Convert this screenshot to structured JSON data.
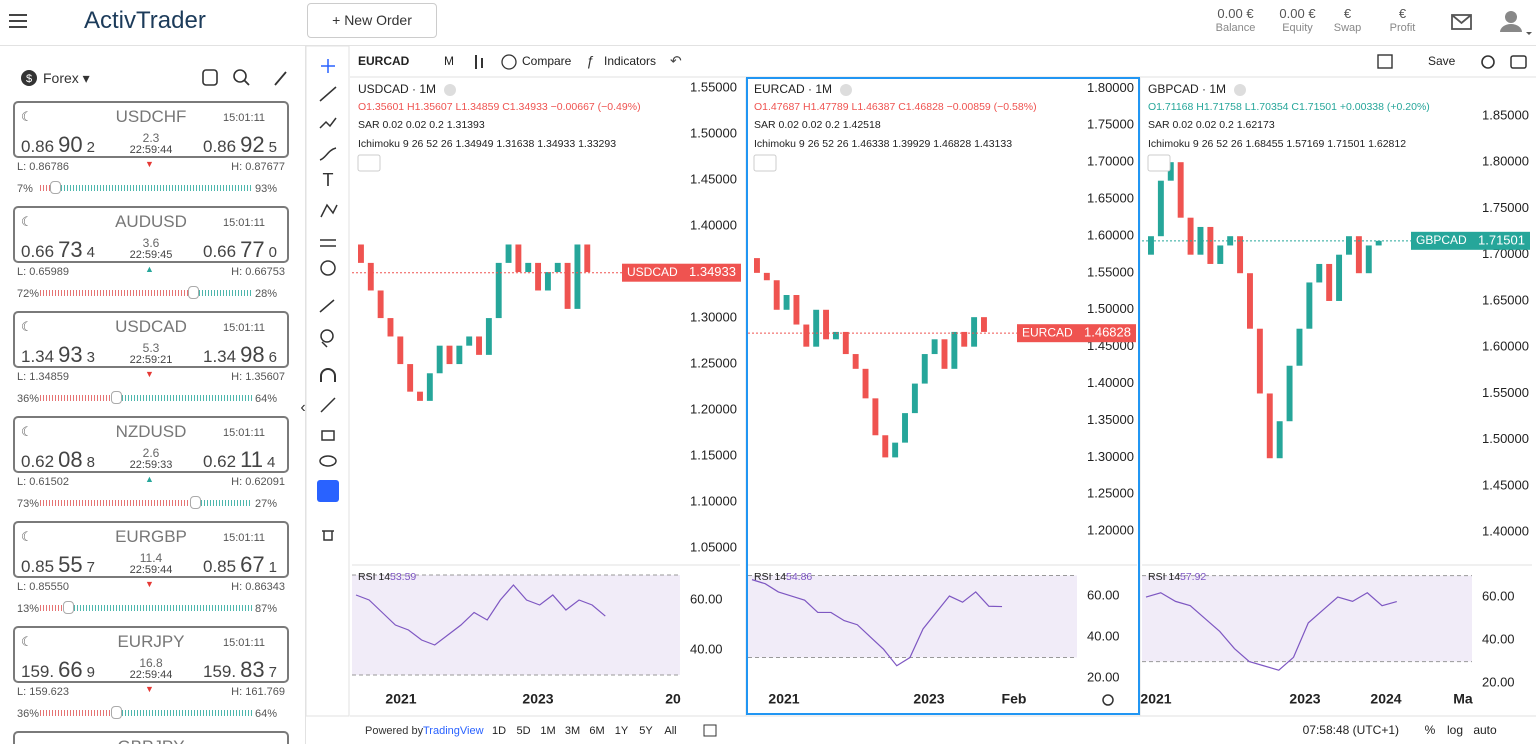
{
  "header": {
    "logo": "ActivTrader",
    "new_order": "New Order",
    "stats": [
      {
        "value": "0.00 €",
        "label": "Balance"
      },
      {
        "value": "0.00 €",
        "label": "Equity"
      },
      {
        "value": "€",
        "label": "Swap"
      },
      {
        "value": "€",
        "label": "Profit"
      }
    ]
  },
  "sidebar": {
    "market": "Forex",
    "quotes": [
      {
        "symbol": "USDCHF",
        "time": "15:01:11",
        "bid": [
          "0.86",
          "90",
          "2"
        ],
        "spread": "2.3",
        "server_time": "22:59:44",
        "ask": [
          "0.86",
          "92",
          "5"
        ],
        "low": "L: 0.86786",
        "high": "H: 0.87677",
        "sell_pct": "7%",
        "buy_pct": "93%",
        "direction": "down"
      },
      {
        "symbol": "AUDUSD",
        "time": "15:01:11",
        "bid": [
          "0.66",
          "73",
          "4"
        ],
        "spread": "3.6",
        "server_time": "22:59:45",
        "ask": [
          "0.66",
          "77",
          "0"
        ],
        "low": "L: 0.65989",
        "high": "H: 0.66753",
        "sell_pct": "72%",
        "buy_pct": "28%",
        "direction": "up"
      },
      {
        "symbol": "USDCAD",
        "time": "15:01:11",
        "bid": [
          "1.34",
          "93",
          "3"
        ],
        "spread": "5.3",
        "server_time": "22:59:21",
        "ask": [
          "1.34",
          "98",
          "6"
        ],
        "low": "L: 1.34859",
        "high": "H: 1.35607",
        "sell_pct": "36%",
        "buy_pct": "64%",
        "direction": "down"
      },
      {
        "symbol": "NZDUSD",
        "time": "15:01:11",
        "bid": [
          "0.62",
          "08",
          "8"
        ],
        "spread": "2.6",
        "server_time": "22:59:33",
        "ask": [
          "0.62",
          "11",
          "4"
        ],
        "low": "L: 0.61502",
        "high": "H: 0.62091",
        "sell_pct": "73%",
        "buy_pct": "27%",
        "direction": "up"
      },
      {
        "symbol": "EURGBP",
        "time": "15:01:11",
        "bid": [
          "0.85",
          "55",
          "7"
        ],
        "spread": "11.4",
        "server_time": "22:59:44",
        "ask": [
          "0.85",
          "67",
          "1"
        ],
        "low": "L: 0.85550",
        "high": "H: 0.86343",
        "sell_pct": "13%",
        "buy_pct": "87%",
        "direction": "down"
      },
      {
        "symbol": "EURJPY",
        "time": "15:01:11",
        "bid": [
          "159.",
          "66",
          "9"
        ],
        "spread": "16.8",
        "server_time": "22:59:44",
        "ask": [
          "159.",
          "83",
          "7"
        ],
        "low": "L: 159.623",
        "high": "H: 161.769",
        "sell_pct": "36%",
        "buy_pct": "64%",
        "direction": "down"
      }
    ],
    "partial_symbol": "GBPJPY"
  },
  "toolbar": {
    "symbol": "EURCAD",
    "interval": "M",
    "compare": "Compare",
    "indicators": "Indicators",
    "save": "Save"
  },
  "chart_data": [
    {
      "type": "candlestick",
      "title": "USDCAD · 1M",
      "ohlc": "O1.35601 H1.35607 L1.34859 C1.34933 −0.00667 (−0.49%)",
      "sar": "SAR 0.02 0.02 0.2 1.31393",
      "ichimoku": "Ichimoku 9 26 52 26 1.34949 1.31638 1.34933 1.33293",
      "last_symbol": "USDCAD",
      "last_price": 1.34933,
      "color": "#ef5350",
      "ylim": [
        1.037,
        1.561
      ],
      "yticks": [
        {
          "value": 1.55,
          "label": "1.55000"
        },
        {
          "value": 1.5,
          "label": "1.50000"
        },
        {
          "value": 1.45,
          "label": "1.45000"
        },
        {
          "value": 1.4,
          "label": "1.40000"
        },
        {
          "value": 1.35,
          "label": "1.35000"
        },
        {
          "value": 1.3,
          "label": "1.30000"
        },
        {
          "value": 1.25,
          "label": "1.25000"
        },
        {
          "value": 1.2,
          "label": "1.20000"
        },
        {
          "value": 1.15,
          "label": "1.15000"
        },
        {
          "value": 1.1,
          "label": "1.10000"
        },
        {
          "value": 1.05,
          "label": "1.05000"
        }
      ],
      "open": [
        1.38,
        1.36,
        1.33,
        1.3,
        1.28,
        1.25,
        1.22,
        1.21,
        1.24,
        1.27,
        1.25,
        1.27,
        1.28,
        1.26,
        1.3,
        1.36,
        1.38,
        1.35,
        1.36,
        1.33,
        1.35,
        1.36,
        1.31,
        1.38
      ],
      "close": [
        1.36,
        1.33,
        1.3,
        1.28,
        1.25,
        1.22,
        1.21,
        1.24,
        1.27,
        1.25,
        1.27,
        1.28,
        1.26,
        1.3,
        1.36,
        1.38,
        1.35,
        1.36,
        1.33,
        1.35,
        1.36,
        1.31,
        1.38,
        1.35
      ],
      "rsi": {
        "label": "RSI 14",
        "value": 53.59,
        "values": [
          62,
          60,
          55,
          50,
          48,
          44,
          42,
          46,
          50,
          55,
          52,
          60,
          66,
          60,
          58,
          62,
          56,
          60,
          58,
          53.59
        ],
        "ylim": [
          26,
          72
        ],
        "band": [
          70,
          30
        ],
        "yticks": [
          {
            "value": 60,
            "label": "60.00"
          },
          {
            "value": 40,
            "label": "40.00"
          }
        ]
      },
      "xlabels": [
        "2021",
        "2023",
        "20"
      ]
    },
    {
      "type": "candlestick",
      "title": "EURCAD · 1M",
      "ohlc": "O1.47687 H1.47789 L1.46387 C1.46828 −0.00859 (−0.58%)",
      "sar": "SAR 0.02 0.02 0.2 1.42518",
      "ichimoku": "Ichimoku 9 26 52 26 1.46338 1.39929 1.46828 1.43133",
      "last_symbol": "EURCAD",
      "last_price": 1.46828,
      "color": "#ef5350",
      "ylim": [
        1.161,
        1.814
      ],
      "yticks": [
        {
          "value": 1.8,
          "label": "1.80000"
        },
        {
          "value": 1.75,
          "label": "1.75000"
        },
        {
          "value": 1.7,
          "label": "1.70000"
        },
        {
          "value": 1.65,
          "label": "1.65000"
        },
        {
          "value": 1.6,
          "label": "1.60000"
        },
        {
          "value": 1.55,
          "label": "1.55000"
        },
        {
          "value": 1.5,
          "label": "1.50000"
        },
        {
          "value": 1.45,
          "label": "1.45000"
        },
        {
          "value": 1.4,
          "label": "1.40000"
        },
        {
          "value": 1.35,
          "label": "1.35000"
        },
        {
          "value": 1.3,
          "label": "1.30000"
        },
        {
          "value": 1.25,
          "label": "1.25000"
        },
        {
          "value": 1.2,
          "label": "1.20000"
        }
      ],
      "open": [
        1.57,
        1.55,
        1.54,
        1.5,
        1.52,
        1.48,
        1.45,
        1.5,
        1.46,
        1.47,
        1.44,
        1.42,
        1.38,
        1.33,
        1.3,
        1.32,
        1.36,
        1.4,
        1.44,
        1.46,
        1.42,
        1.47,
        1.45,
        1.49
      ],
      "close": [
        1.55,
        1.54,
        1.5,
        1.52,
        1.48,
        1.45,
        1.5,
        1.46,
        1.47,
        1.44,
        1.42,
        1.38,
        1.33,
        1.3,
        1.32,
        1.36,
        1.4,
        1.44,
        1.46,
        1.42,
        1.47,
        1.45,
        1.49,
        1.47
      ],
      "rsi": {
        "label": "RSI 14",
        "value": 54.86,
        "values": [
          68,
          66,
          62,
          60,
          58,
          52,
          52,
          48,
          46,
          40,
          34,
          26,
          30,
          44,
          52,
          60,
          57,
          62,
          55,
          54.86
        ],
        "ylim": [
          16.6,
          72.7
        ],
        "band": [
          70,
          30
        ],
        "yticks": [
          {
            "value": 60,
            "label": "60.00"
          },
          {
            "value": 40,
            "label": "40.00"
          },
          {
            "value": 20,
            "label": "20.00"
          }
        ]
      },
      "xlabels": [
        "2021",
        "2023",
        "Feb"
      ]
    },
    {
      "type": "candlestick",
      "title": "GBPCAD · 1M",
      "ohlc": "O1.71168 H1.71758 L1.70354 C1.71501 +0.00338 (+0.20%)",
      "sar": "SAR 0.02 0.02 0.2 1.62173",
      "ichimoku": "Ichimoku 9 26 52 26 1.68455 1.57169 1.71501 1.62812",
      "last_symbol": "GBPCAD",
      "last_price": 1.71501,
      "color": "#26a69a",
      "ylim": [
        1.37,
        1.891
      ],
      "yticks": [
        {
          "value": 1.85,
          "label": "1.85000"
        },
        {
          "value": 1.8,
          "label": "1.80000"
        },
        {
          "value": 1.75,
          "label": "1.75000"
        },
        {
          "value": 1.7,
          "label": "1.70000"
        },
        {
          "value": 1.65,
          "label": "1.65000"
        },
        {
          "value": 1.6,
          "label": "1.60000"
        },
        {
          "value": 1.55,
          "label": "1.55000"
        },
        {
          "value": 1.5,
          "label": "1.50000"
        },
        {
          "value": 1.45,
          "label": "1.45000"
        },
        {
          "value": 1.4,
          "label": "1.40000"
        }
      ],
      "open": [
        1.7,
        1.72,
        1.78,
        1.8,
        1.74,
        1.7,
        1.73,
        1.69,
        1.71,
        1.72,
        1.68,
        1.62,
        1.55,
        1.48,
        1.52,
        1.58,
        1.62,
        1.67,
        1.69,
        1.65,
        1.7,
        1.72,
        1.68,
        1.71
      ],
      "close": [
        1.72,
        1.78,
        1.8,
        1.74,
        1.7,
        1.73,
        1.69,
        1.71,
        1.72,
        1.68,
        1.62,
        1.55,
        1.48,
        1.52,
        1.58,
        1.62,
        1.67,
        1.69,
        1.65,
        1.7,
        1.72,
        1.68,
        1.71,
        1.715
      ],
      "rsi": {
        "label": "RSI 14",
        "value": 57.92,
        "values": [
          60,
          62,
          58,
          56,
          50,
          44,
          36,
          30,
          28,
          26,
          32,
          48,
          54,
          60,
          58,
          62,
          56,
          57.92
        ],
        "ylim": [
          19.1,
          72.6
        ],
        "band": [
          70,
          30
        ],
        "yticks": [
          {
            "value": 60,
            "label": "60.00"
          },
          {
            "value": 40,
            "label": "40.00"
          },
          {
            "value": 20,
            "label": "20.00"
          }
        ]
      },
      "xlabels": [
        "2021",
        "2023",
        "2024",
        "Ma"
      ]
    }
  ],
  "footer": {
    "powered": "Powered by",
    "brand": "TradingView",
    "ranges": [
      "1D",
      "5D",
      "1M",
      "3M",
      "6M",
      "1Y",
      "5Y",
      "All"
    ],
    "clock": "07:58:48 (UTC+1)",
    "options": [
      "%",
      "log",
      "auto"
    ]
  }
}
